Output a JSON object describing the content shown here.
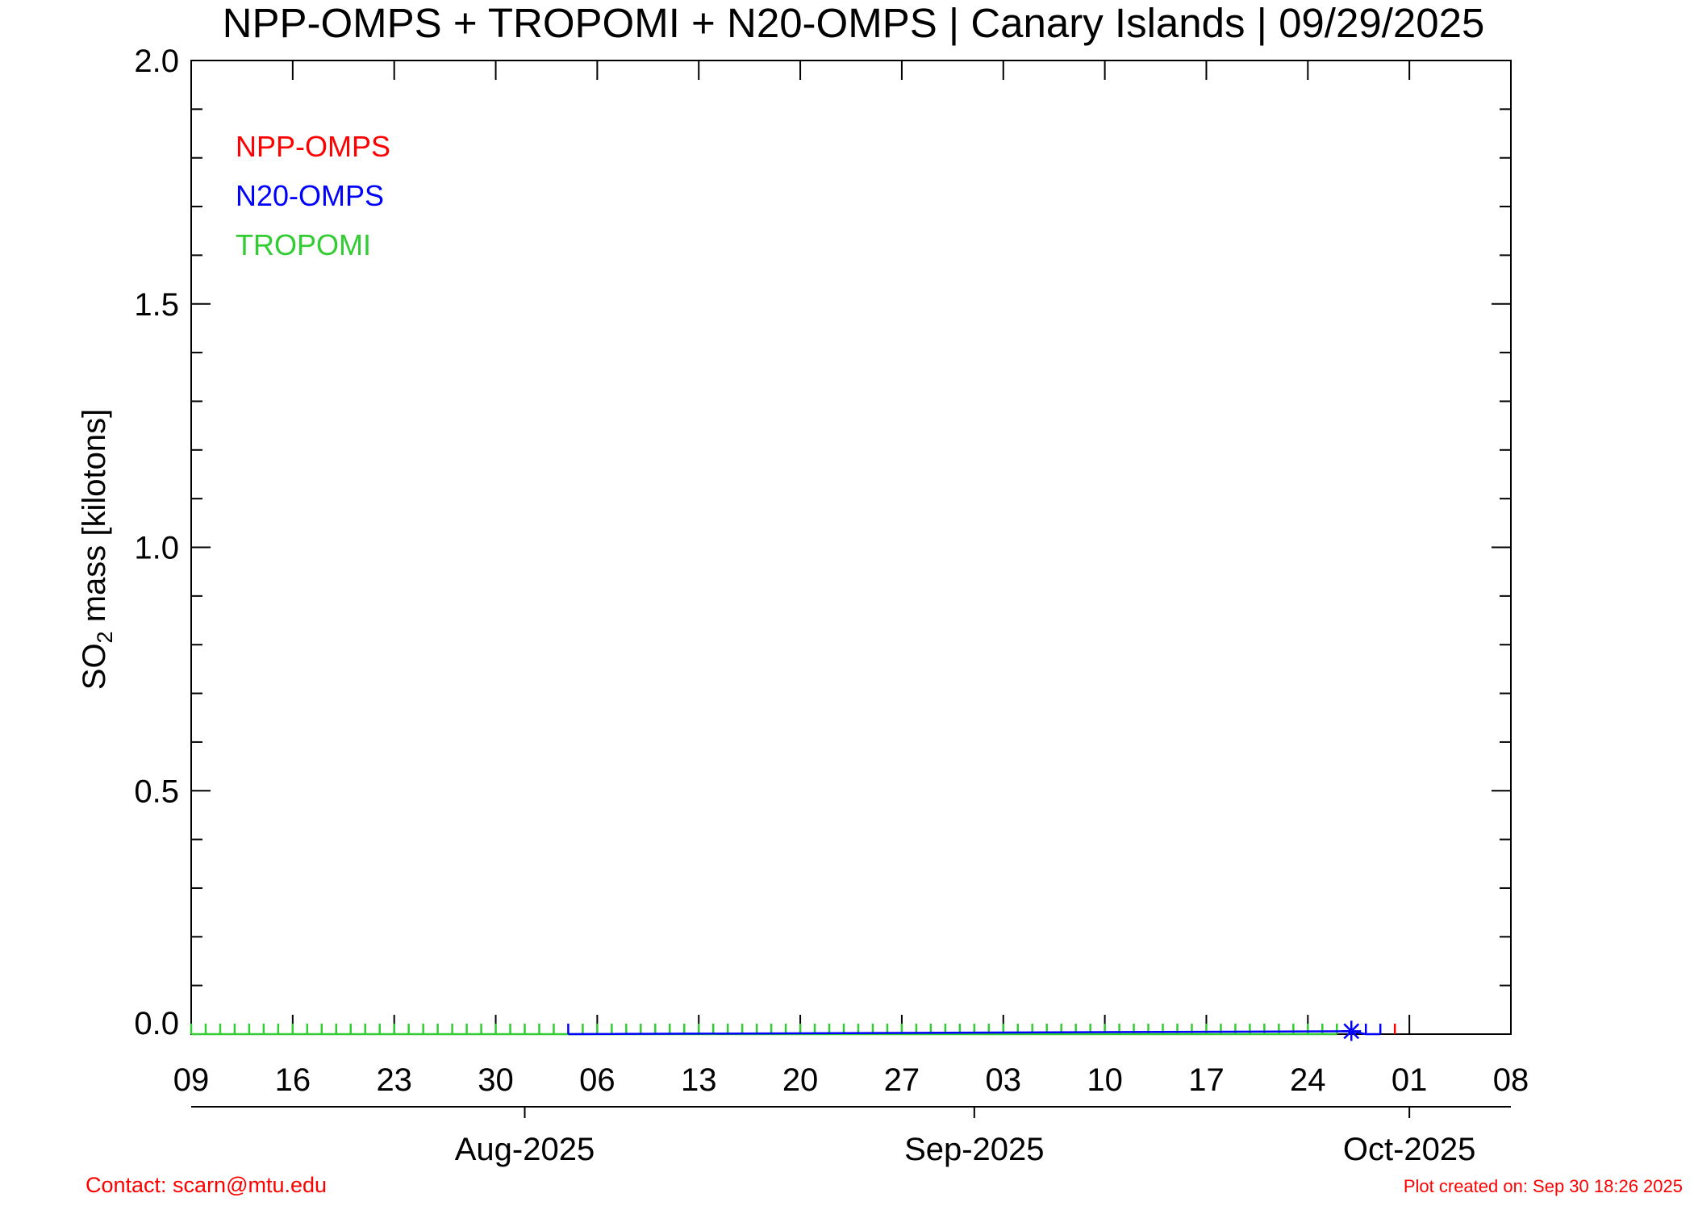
{
  "chart_data": {
    "type": "scatter",
    "title": "NPP-OMPS + TROPOMI + N20-OMPS | Canary Islands | 09/29/2025",
    "ylabel": {
      "pre": "SO",
      "sub": "2",
      "post": " mass [kilotons]"
    },
    "ylim": [
      0.0,
      2.0
    ],
    "yticks": [
      {
        "value": 0.0,
        "label": "0.0"
      },
      {
        "value": 0.5,
        "label": "0.5"
      },
      {
        "value": 1.0,
        "label": "1.0"
      },
      {
        "value": 1.5,
        "label": "1.5"
      },
      {
        "value": 2.0,
        "label": "2.0"
      }
    ],
    "y_minor_step": 0.1,
    "xlim": [
      "2025-07-09",
      "2025-10-08"
    ],
    "x_day_ticks": [
      {
        "date": "2025-07-09",
        "label": "09"
      },
      {
        "date": "2025-07-16",
        "label": "16"
      },
      {
        "date": "2025-07-23",
        "label": "23"
      },
      {
        "date": "2025-07-30",
        "label": "30"
      },
      {
        "date": "2025-08-06",
        "label": "06"
      },
      {
        "date": "2025-08-13",
        "label": "13"
      },
      {
        "date": "2025-08-20",
        "label": "20"
      },
      {
        "date": "2025-08-27",
        "label": "27"
      },
      {
        "date": "2025-09-03",
        "label": "03"
      },
      {
        "date": "2025-09-10",
        "label": "10"
      },
      {
        "date": "2025-09-17",
        "label": "17"
      },
      {
        "date": "2025-09-24",
        "label": "24"
      },
      {
        "date": "2025-10-01",
        "label": "01"
      },
      {
        "date": "2025-10-08",
        "label": "08"
      }
    ],
    "x_month_ticks": [
      {
        "date": "2025-08-01",
        "label": "Aug-2025"
      },
      {
        "date": "2025-09-01",
        "label": "Sep-2025"
      },
      {
        "date": "2025-10-01",
        "label": "Oct-2025"
      }
    ],
    "legend_placement": "top-left",
    "series": [
      {
        "name": "NPP-OMPS",
        "color": "#ff0000",
        "marker": "tick",
        "x": [
          "2025-09-30"
        ],
        "y": [
          0
        ]
      },
      {
        "name": "N20-OMPS",
        "color": "#0000ff",
        "marker": "tick",
        "x": [
          "2025-08-04",
          "2025-09-27",
          "2025-09-28",
          "2025-09-29"
        ],
        "y": [
          0,
          0.006,
          0,
          0
        ]
      },
      {
        "name": "TROPOMI",
        "color": "#32cd32",
        "marker": "tick",
        "x": [
          "2025-07-09",
          "2025-07-10",
          "2025-07-11",
          "2025-07-12",
          "2025-07-13",
          "2025-07-14",
          "2025-07-15",
          "2025-07-16",
          "2025-07-17",
          "2025-07-18",
          "2025-07-19",
          "2025-07-20",
          "2025-07-21",
          "2025-07-22",
          "2025-07-23",
          "2025-07-24",
          "2025-07-25",
          "2025-07-26",
          "2025-07-27",
          "2025-07-28",
          "2025-07-29",
          "2025-07-30",
          "2025-07-31",
          "2025-08-01",
          "2025-08-02",
          "2025-08-03",
          "2025-08-05",
          "2025-08-06",
          "2025-08-07",
          "2025-08-08",
          "2025-08-09",
          "2025-08-10",
          "2025-08-11",
          "2025-08-12",
          "2025-08-13",
          "2025-08-14",
          "2025-08-15",
          "2025-08-16",
          "2025-08-17",
          "2025-08-18",
          "2025-08-19",
          "2025-08-20",
          "2025-08-21",
          "2025-08-22",
          "2025-08-23",
          "2025-08-24",
          "2025-08-25",
          "2025-08-26",
          "2025-08-27",
          "2025-08-28",
          "2025-08-29",
          "2025-08-30",
          "2025-08-31",
          "2025-09-01",
          "2025-09-02",
          "2025-09-03",
          "2025-09-04",
          "2025-09-05",
          "2025-09-06",
          "2025-09-07",
          "2025-09-08",
          "2025-09-09",
          "2025-09-10",
          "2025-09-11",
          "2025-09-12",
          "2025-09-13",
          "2025-09-14",
          "2025-09-15",
          "2025-09-16",
          "2025-09-17",
          "2025-09-18",
          "2025-09-19",
          "2025-09-20",
          "2025-09-21",
          "2025-09-22",
          "2025-09-23",
          "2025-09-24",
          "2025-09-25",
          "2025-09-26"
        ],
        "y": [
          0,
          0,
          0,
          0,
          0,
          0,
          0,
          0,
          0,
          0,
          0,
          0,
          0,
          0,
          0,
          0,
          0,
          0,
          0,
          0,
          0,
          0,
          0,
          0,
          0,
          0,
          0,
          0,
          0,
          0,
          0,
          0,
          0,
          0,
          0,
          0,
          0,
          0,
          0,
          0,
          0,
          0,
          0,
          0,
          0,
          0,
          0,
          0,
          0,
          0,
          0,
          0,
          0,
          0,
          0,
          0,
          0,
          0,
          0,
          0,
          0,
          0,
          0,
          0,
          0,
          0,
          0,
          0,
          0,
          0,
          0,
          0,
          0,
          0,
          0,
          0,
          0,
          0,
          0
        ]
      }
    ],
    "footer_left": "Contact: scarn@mtu.edu",
    "footer_right": "Plot created on: Sep 30 18:26 2025",
    "footer_color": "#ff0000"
  }
}
